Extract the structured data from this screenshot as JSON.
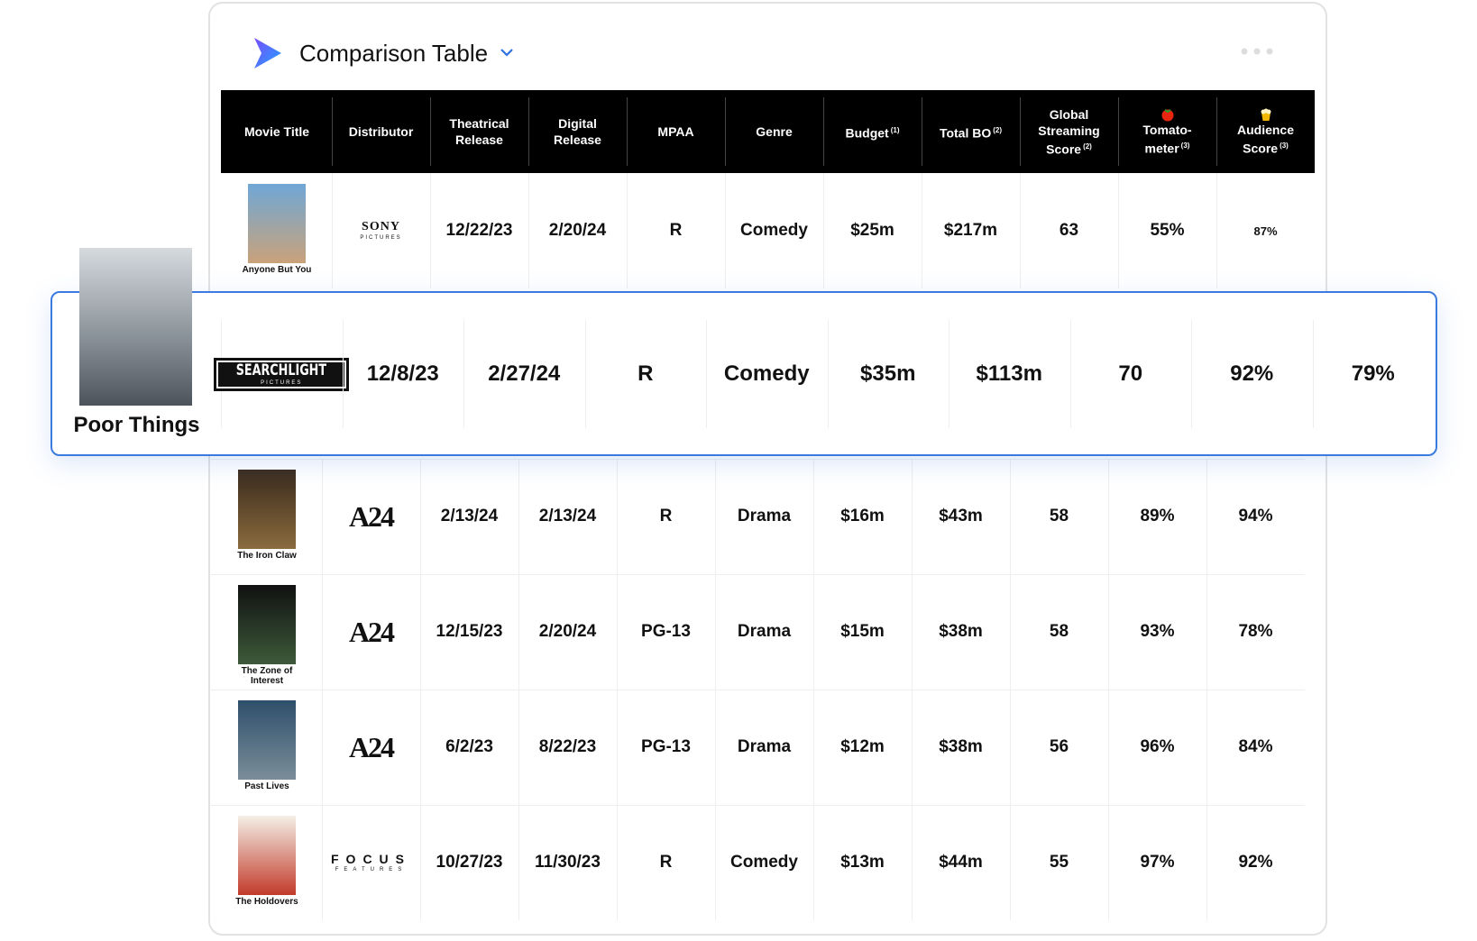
{
  "header": {
    "title": "Comparison Table"
  },
  "table": {
    "columns": [
      {
        "label": "Movie Title"
      },
      {
        "label": "Distributor"
      },
      {
        "label": "Theatrical Release"
      },
      {
        "label": "Digital Release"
      },
      {
        "label": "MPAA"
      },
      {
        "label": "Genre"
      },
      {
        "label": "Budget",
        "note": "(1)"
      },
      {
        "label": "Total BO",
        "note": "(2)"
      },
      {
        "label": "Global Streaming Score",
        "note": "(2)"
      },
      {
        "label": "Tomato-meter",
        "note": "(3)"
      },
      {
        "label": "Audience Score",
        "note": "(3)"
      }
    ],
    "rows": [
      {
        "title": "Anyone But You",
        "distributor": {
          "name": "SONY",
          "sub": "PICTURES"
        },
        "theatrical": "12/22/23",
        "digital": "2/20/24",
        "mpaa": "R",
        "genre": "Comedy",
        "budget": "$25m",
        "total_bo": "$217m",
        "streaming": 63,
        "tomatometer": "55%",
        "audience": "87%"
      },
      {
        "title": "Poor Things",
        "distributor": {
          "name": "SEARCHLIGHT",
          "sub": "PICTURES"
        },
        "theatrical": "12/8/23",
        "digital": "2/27/24",
        "mpaa": "R",
        "genre": "Comedy",
        "budget": "$35m",
        "total_bo": "$113m",
        "streaming": 70,
        "tomatometer": "92%",
        "audience": "79%"
      },
      {
        "title": "The Iron Claw",
        "distributor": {
          "name": "A24"
        },
        "theatrical": "2/13/24",
        "digital": "2/13/24",
        "mpaa": "R",
        "genre": "Drama",
        "budget": "$16m",
        "total_bo": "$43m",
        "streaming": 58,
        "tomatometer": "89%",
        "audience": "94%"
      },
      {
        "title": "The Zone of Interest",
        "distributor": {
          "name": "A24"
        },
        "theatrical": "12/15/23",
        "digital": "2/20/24",
        "mpaa": "PG-13",
        "genre": "Drama",
        "budget": "$15m",
        "total_bo": "$38m",
        "streaming": 58,
        "tomatometer": "93%",
        "audience": "78%"
      },
      {
        "title": "Past Lives",
        "distributor": {
          "name": "A24"
        },
        "theatrical": "6/2/23",
        "digital": "8/22/23",
        "mpaa": "PG-13",
        "genre": "Drama",
        "budget": "$12m",
        "total_bo": "$38m",
        "streaming": 56,
        "tomatometer": "96%",
        "audience": "84%"
      },
      {
        "title": "The Holdovers",
        "distributor": {
          "name": "FOCUS",
          "sub": "FEATURES"
        },
        "theatrical": "10/27/23",
        "digital": "11/30/23",
        "mpaa": "R",
        "genre": "Comedy",
        "budget": "$13m",
        "total_bo": "$44m",
        "streaming": 55,
        "tomatometer": "97%",
        "audience": "92%"
      }
    ]
  }
}
